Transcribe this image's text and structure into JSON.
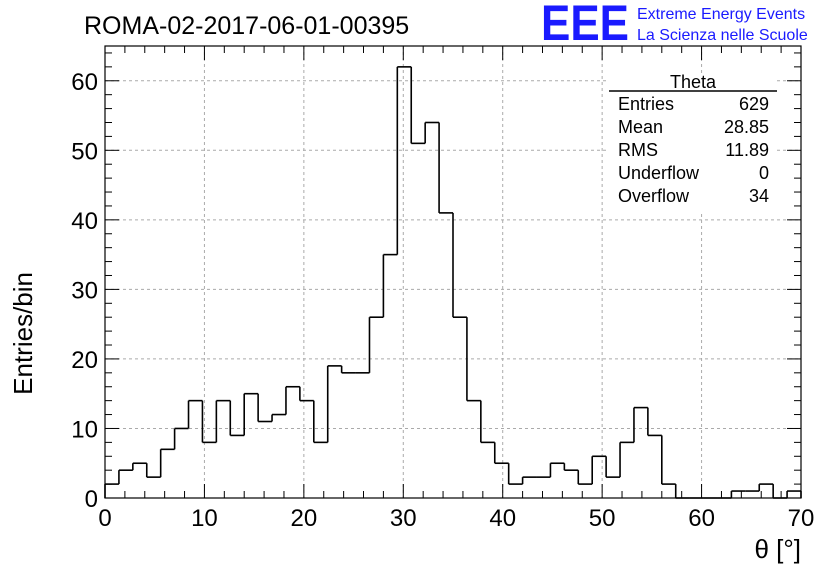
{
  "chart_data": {
    "type": "bar",
    "title": "ROMA-02-2017-06-01-00395",
    "xlabel": "θ [°]",
    "ylabel": "Entries/bin",
    "xlim": [
      0,
      70
    ],
    "ylim": [
      0,
      65
    ],
    "grid": true,
    "bin_width": 1.4,
    "x_ticks": [
      0,
      10,
      20,
      30,
      40,
      50,
      60,
      70
    ],
    "y_ticks": [
      0,
      10,
      20,
      30,
      40,
      50,
      60
    ],
    "values": [
      2,
      4,
      5,
      3,
      7,
      10,
      14,
      8,
      14,
      9,
      15,
      11,
      12,
      16,
      14,
      8,
      19,
      18,
      18,
      26,
      35,
      62,
      51,
      54,
      41,
      26,
      14,
      8,
      5,
      2,
      3,
      3,
      5,
      4,
      2,
      6,
      3,
      8,
      13,
      9,
      2,
      0,
      0,
      0,
      0,
      1,
      1,
      2,
      0,
      1
    ],
    "stats": {
      "name": "Theta",
      "rows": [
        {
          "label": "Entries",
          "value": "629"
        },
        {
          "label": "Mean",
          "value": "28.85"
        },
        {
          "label": "RMS",
          "value": "11.89"
        },
        {
          "label": "Underflow",
          "value": "0"
        },
        {
          "label": "Overflow",
          "value": "34"
        }
      ]
    }
  },
  "logo": {
    "mark": "EEE",
    "line1": "Extreme Energy Events",
    "line2": "La Scienza nelle Scuole",
    "color": "#1a1aff"
  }
}
